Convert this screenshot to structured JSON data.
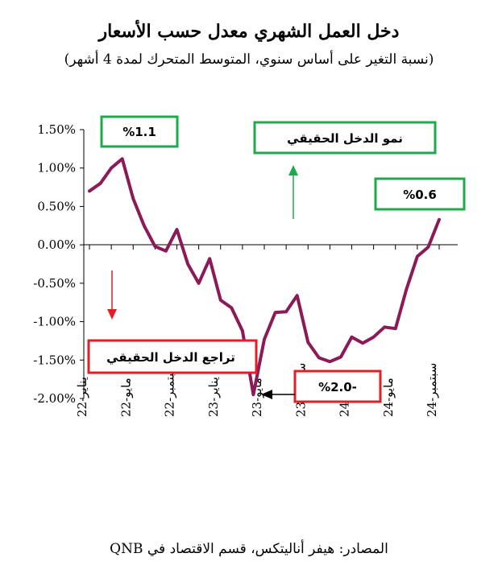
{
  "chart_data": {
    "type": "line",
    "title": "دخل العمل الشهري معدل حسب الأسعار",
    "subtitle": "(نسبة التغير على أساس سنوي، المتوسط المتحرك لمدة 4 أشهر)",
    "xlabel": "",
    "ylabel": "",
    "ylim": [
      -2.0,
      1.5
    ],
    "y_ticks": [
      "1.50%",
      "1.00%",
      "0.50%",
      "0.00%",
      "-0.50%",
      "-1.00%",
      "-1.50%",
      "-2.00%"
    ],
    "y_tick_values": [
      1.5,
      1.0,
      0.5,
      0.0,
      -0.5,
      -1.0,
      -1.5,
      -2.0
    ],
    "x_tick_labels": [
      "يناير-22",
      "مايو-22",
      "سبتمبر-22",
      "يناير-23",
      "مايو-23",
      "سبتمبر-23",
      "يناير-24",
      "مايو-24",
      "سبتمبر-24"
    ],
    "grid": false,
    "series": [
      {
        "color": "#8b1a57",
        "x": [
          "2022-01",
          "2022-02",
          "2022-03",
          "2022-04",
          "2022-05",
          "2022-06",
          "2022-07",
          "2022-08",
          "2022-09",
          "2022-10",
          "2022-11",
          "2022-12",
          "2023-01",
          "2023-02",
          "2023-03",
          "2023-04",
          "2023-05",
          "2023-06",
          "2023-07",
          "2023-08",
          "2023-09",
          "2023-10",
          "2023-11",
          "2023-12",
          "2024-01",
          "2024-02",
          "2024-03",
          "2024-04",
          "2024-05",
          "2024-06",
          "2024-07",
          "2024-08",
          "2024-09"
        ],
        "values": [
          0.7,
          0.8,
          1.0,
          1.12,
          0.6,
          0.25,
          -0.02,
          -0.08,
          0.2,
          -0.25,
          -0.5,
          -0.18,
          -0.72,
          -0.82,
          -1.12,
          -1.95,
          -1.23,
          -0.88,
          -0.87,
          -0.66,
          -1.27,
          -1.47,
          -1.52,
          -1.46,
          -1.2,
          -1.28,
          -1.2,
          -1.07,
          -1.09,
          -0.58,
          -0.15,
          -0.03,
          0.33
        ]
      }
    ],
    "annotations": [
      {
        "text": "%1.1",
        "color": "#1faa4a"
      },
      {
        "text": "نمو الدخل الحقيقي",
        "color": "#1faa4a"
      },
      {
        "text": "%0.6",
        "color": "#1faa4a"
      },
      {
        "text": "تراجع الدخل الحقيقي",
        "color": "#e31e24"
      },
      {
        "text": "%2.0-",
        "color": "#e31e24"
      }
    ],
    "source": "المصادر: هيفر أناليتكس، قسم الاقتصاد في QNB"
  }
}
